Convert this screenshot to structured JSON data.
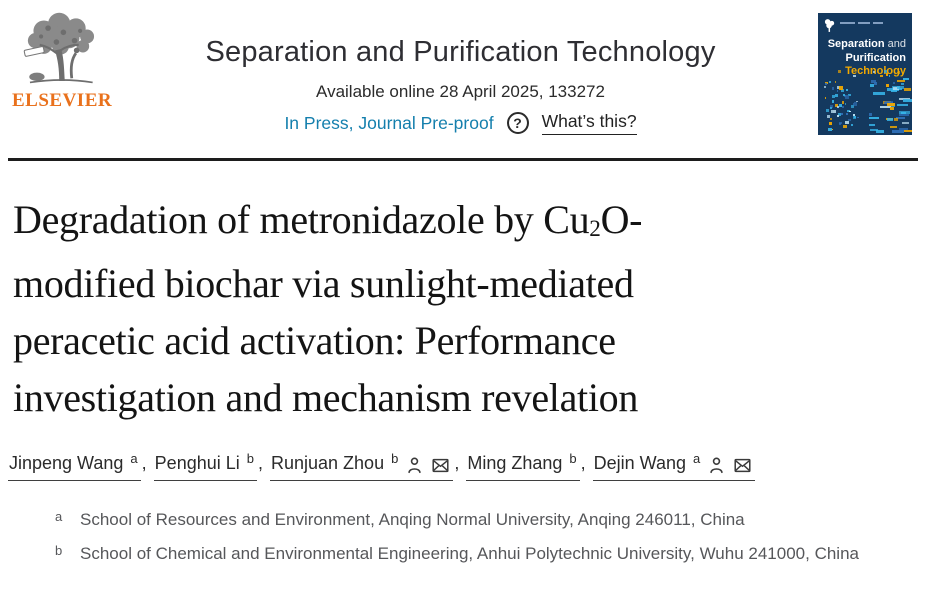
{
  "colors": {
    "elsevier_orange": "#E9711C",
    "link_blue": "#147FAD",
    "cover_bg": "#14395F",
    "cover_accent": "#F2A900",
    "rule": "#1D1D1D"
  },
  "brand": {
    "publisher": "ELSEVIER"
  },
  "header": {
    "journal_title": "Separation and Purification Technology",
    "available": "Available online 28 April 2025, 133272",
    "status": "In Press, Journal Pre-proof",
    "help_q": "?",
    "whats_this": "What’s this?"
  },
  "cover": {
    "line1_strong": "Separation",
    "line1_light": " and",
    "line2": "Purification",
    "line3": "Technology"
  },
  "article": {
    "title_lines": [
      [
        {
          "t": "Degradation of metronidazole by Cu"
        },
        {
          "t": "2",
          "sub": true
        },
        {
          "t": "O-"
        }
      ],
      [
        {
          "t": "modified biochar via sunlight-mediated"
        }
      ],
      [
        {
          "t": "peracetic acid activation: Performance"
        }
      ],
      [
        {
          "t": "investigation and mechanism revelation"
        }
      ]
    ]
  },
  "authors": {
    "separator": ", ",
    "list": [
      {
        "name": "Jinpeng Wang",
        "sup": "a",
        "icons": []
      },
      {
        "name": "Penghui Li",
        "sup": "b",
        "icons": []
      },
      {
        "name": "Runjuan Zhou",
        "sup": "b",
        "icons": [
          "person-icon",
          "envelope-icon"
        ]
      },
      {
        "name": "Ming Zhang",
        "sup": "b",
        "icons": []
      },
      {
        "name": "Dejin Wang",
        "sup": "a",
        "icons": [
          "person-icon",
          "envelope-icon"
        ]
      }
    ]
  },
  "affiliations": [
    {
      "sup": "a",
      "text": "School of Resources and Environment, Anqing Normal University, Anqing 246011, China"
    },
    {
      "sup": "b",
      "text": "School of Chemical and Environmental Engineering, Anhui Polytechnic University, Wuhu 241000, China"
    }
  ]
}
